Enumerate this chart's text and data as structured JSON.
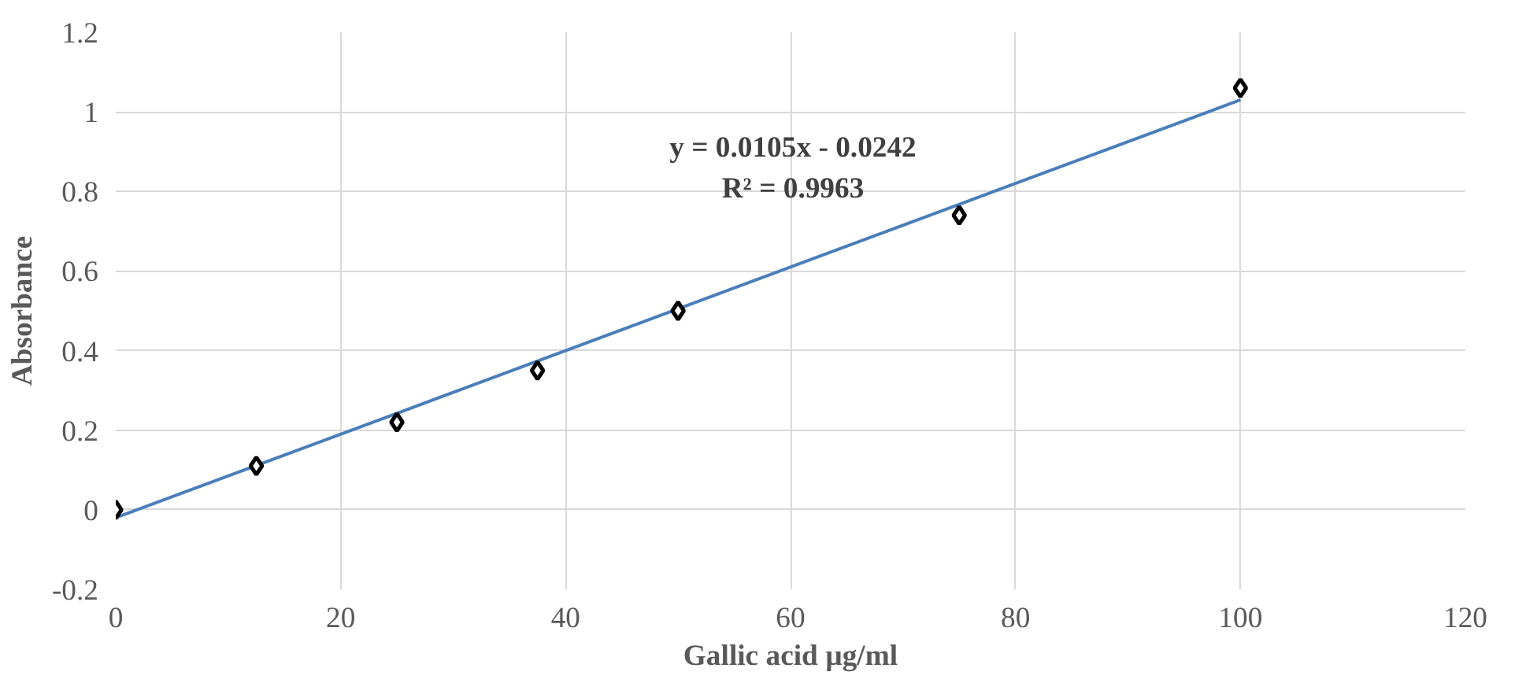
{
  "chart_data": {
    "type": "scatter",
    "xlabel": "Gallic acid µg/ml",
    "ylabel": "Absorbance",
    "x": [
      0,
      12.5,
      25,
      37.5,
      50,
      75,
      100
    ],
    "series": [
      {
        "color": "#000000",
        "marker": "diamond",
        "values": [
          0,
          0.11,
          0.22,
          0.35,
          0.5,
          0.74,
          1.06
        ]
      },
      {
        "type": "line",
        "color": "#4a7ebb",
        "x": [
          0,
          100
        ],
        "values": [
          -0.02,
          1.03
        ]
      }
    ],
    "annotations": [
      "y = 0.0105x - 0.0242",
      "R² = 0.9963"
    ],
    "xlim": [
      0,
      120
    ],
    "xticks": [
      0,
      20,
      40,
      60,
      80,
      100,
      120
    ],
    "ylim": [
      -0.2,
      1.2
    ],
    "yticks": [
      -0.2,
      0,
      0.2,
      0.4,
      0.6,
      0.8,
      1,
      1.2
    ],
    "grid": true
  }
}
